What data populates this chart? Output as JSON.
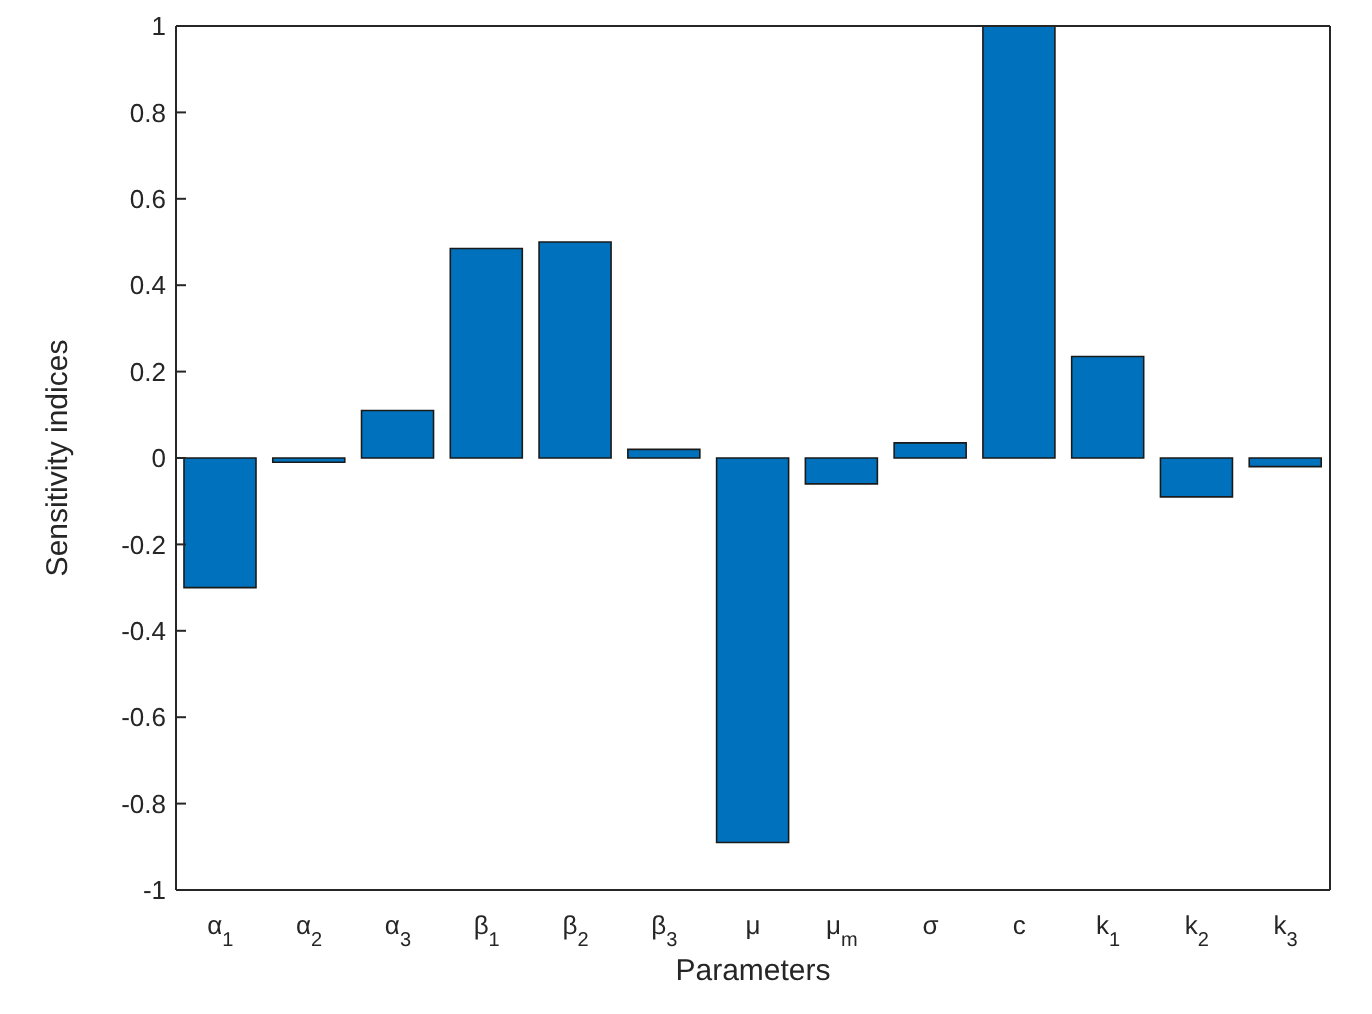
{
  "chart_data": {
    "type": "bar",
    "xlabel": "Parameters",
    "ylabel": "Sensitivity indices",
    "categories": [
      "α$_{1}$",
      "α$_{2}$",
      "α$_{3}$",
      "β$_{1}$",
      "β$_{2}$",
      "β$_{3}$",
      "μ",
      "μ$_{m}$",
      "σ",
      "c",
      "k$_{1}$",
      "k$_{2}$",
      "k$_{3}$"
    ],
    "values": [
      -0.3,
      -0.01,
      0.11,
      0.485,
      0.5,
      0.02,
      -0.89,
      -0.06,
      0.035,
      1.0,
      0.235,
      -0.09,
      -0.02
    ],
    "color": "#0072bd",
    "ylim": [
      -1,
      1
    ],
    "yticks": [
      -1,
      -0.8,
      -0.6,
      -0.4,
      -0.2,
      0,
      0.2,
      0.4,
      0.6,
      0.8,
      1
    ]
  }
}
